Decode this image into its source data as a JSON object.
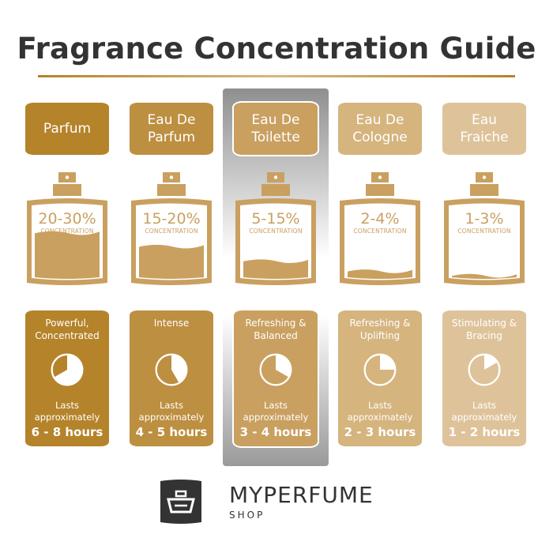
{
  "title": "Fragrance Concentration Guide",
  "colors": {
    "bottle": "#c9a060",
    "title": "#333333",
    "highlight": "#9a9a9a"
  },
  "highlighted_column": 2,
  "columns": [
    {
      "name_lines": [
        "Parfum"
      ],
      "concentration": "20-30%",
      "concentration_label": "CONCENTRATION",
      "liquid_level": 0.42,
      "description_lines": [
        "Powerful,",
        "Concentrated"
      ],
      "lasts_lines": [
        "Lasts",
        "approximately"
      ],
      "hours": "6 - 8 hours",
      "clock_hour": 8,
      "color": "#b5832a"
    },
    {
      "name_lines": [
        "Eau De",
        "Parfum"
      ],
      "concentration": "15-20%",
      "concentration_label": "CONCENTRATION",
      "liquid_level": 0.3,
      "description_lines": [
        "Intense"
      ],
      "lasts_lines": [
        "Lasts",
        "approximately"
      ],
      "hours": "4 - 5 hours",
      "clock_hour": 5,
      "color": "#bd8f40"
    },
    {
      "name_lines": [
        "Eau De",
        "Toilette"
      ],
      "concentration": "5-15%",
      "concentration_label": "CONCENTRATION",
      "liquid_level": 0.17,
      "description_lines": [
        "Refreshing &",
        "Balanced"
      ],
      "lasts_lines": [
        "Lasts",
        "approximately"
      ],
      "hours": "3 - 4 hours",
      "clock_hour": 4,
      "color": "#c9a060"
    },
    {
      "name_lines": [
        "Eau De",
        "Cologne"
      ],
      "concentration": "2-4%",
      "concentration_label": "CONCENTRATION",
      "liquid_level": 0.08,
      "description_lines": [
        "Refreshing &",
        "Uplifting"
      ],
      "lasts_lines": [
        "Lasts",
        "approximately"
      ],
      "hours": "2 - 3 hours",
      "clock_hour": 3,
      "color": "#d5b47e"
    },
    {
      "name_lines": [
        "Eau",
        "Fraiche"
      ],
      "concentration": "1-3%",
      "concentration_label": "CONCENTRATION",
      "liquid_level": 0.04,
      "description_lines": [
        "Stimulating &",
        "Bracing"
      ],
      "lasts_lines": [
        "Lasts",
        "approximately"
      ],
      "hours": "1 - 2 hours",
      "clock_hour": 2,
      "color": "#dec39a"
    }
  ],
  "brand": {
    "name": "MYPERFUME",
    "sub": "SHOP",
    "logo_color": "#333333"
  }
}
